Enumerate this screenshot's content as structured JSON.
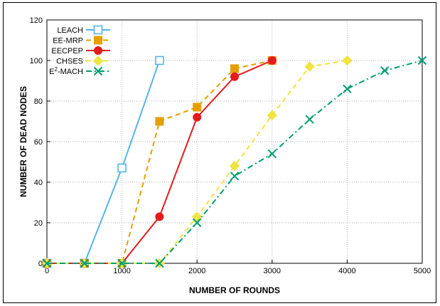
{
  "chart_data": {
    "type": "line",
    "title": "",
    "xlabel": "NUMBER OF ROUNDS",
    "ylabel": "NUMBER OF DEAD NODES",
    "xlim": [
      0,
      5000
    ],
    "ylim": [
      0,
      120
    ],
    "xticks": [
      0,
      1000,
      2000,
      3000,
      4000,
      5000
    ],
    "yticks": [
      0,
      20,
      40,
      60,
      80,
      100,
      120
    ],
    "grid": true,
    "legend_position": "top-left",
    "series": [
      {
        "name": "LEACH",
        "color": "#56b4e9",
        "dash": "solid",
        "marker": "open-square",
        "x": [
          0,
          500,
          1000,
          1500
        ],
        "y": [
          0,
          0,
          47,
          100
        ]
      },
      {
        "name": "EE-MRP",
        "color": "#e69f00",
        "dash": "dashed",
        "marker": "filled-square",
        "x": [
          0,
          500,
          1000,
          1500,
          2000,
          2500,
          3000
        ],
        "y": [
          0,
          0,
          0,
          70,
          77,
          96,
          100
        ]
      },
      {
        "name": "EECPEP",
        "color": "#e41a1c",
        "dash": "solid",
        "marker": "filled-circle",
        "x": [
          0,
          500,
          1000,
          1500,
          2000,
          2500,
          3000
        ],
        "y": [
          0,
          0,
          0,
          23,
          72,
          92,
          100
        ]
      },
      {
        "name": "CHSES",
        "color": "#f0e442",
        "dash": "dashed",
        "marker": "filled-diamond",
        "x": [
          0,
          500,
          1000,
          1500,
          2000,
          2500,
          3000,
          3500,
          4000
        ],
        "y": [
          0,
          0,
          0,
          0,
          23,
          48,
          73,
          97,
          100
        ]
      },
      {
        "name_prefix": "E",
        "name_sup": "2",
        "name_suffix": "-MACH",
        "color": "#009e73",
        "dash": "dashdot",
        "marker": "cross",
        "x": [
          0,
          500,
          1000,
          1500,
          2000,
          2500,
          3000,
          3500,
          4000,
          4500,
          5000
        ],
        "y": [
          0,
          0,
          0,
          0,
          20,
          43,
          54,
          71,
          86,
          95,
          100
        ]
      }
    ]
  }
}
